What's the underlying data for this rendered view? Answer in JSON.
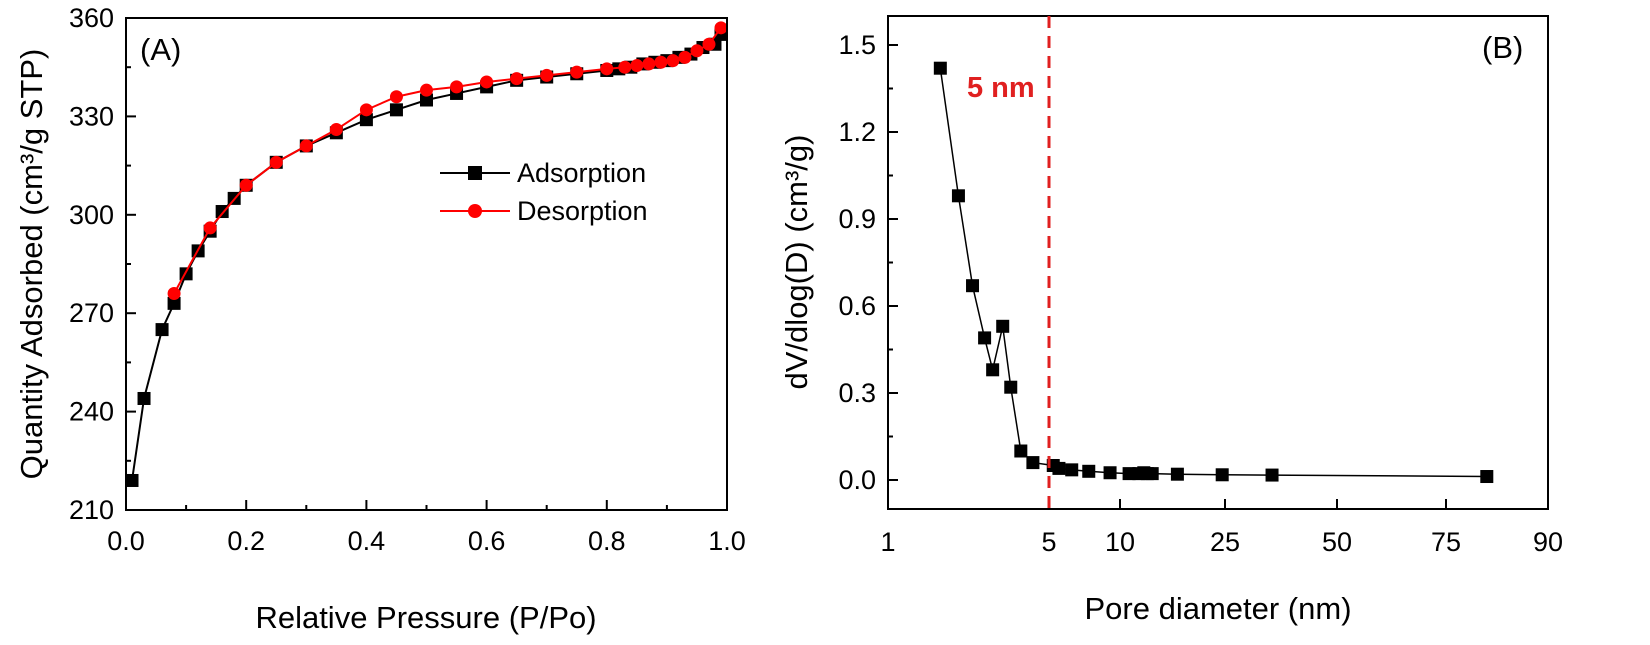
{
  "chart_data": [
    {
      "type": "line",
      "panel_label": "(A)",
      "xlabel": "Relative Pressure (P/Po)",
      "ylabel": "Quantity Adsorbed (cm³/g STP)",
      "xlim": [
        0.0,
        1.0
      ],
      "ylim": [
        210,
        360
      ],
      "xticks": [
        0.0,
        0.2,
        0.4,
        0.6,
        0.8,
        1.0
      ],
      "xtick_labels": [
        "0.0",
        "0.2",
        "0.4",
        "0.6",
        "0.8",
        "1.0"
      ],
      "yticks": [
        210,
        240,
        270,
        300,
        330,
        360
      ],
      "ytick_labels": [
        "210",
        "240",
        "270",
        "300",
        "330",
        "360"
      ],
      "legend_position": "center-right",
      "series": [
        {
          "name": "Adsorption",
          "color": "#000000",
          "marker": "square",
          "x": [
            0.01,
            0.03,
            0.06,
            0.08,
            0.1,
            0.12,
            0.14,
            0.16,
            0.18,
            0.2,
            0.25,
            0.3,
            0.35,
            0.4,
            0.45,
            0.5,
            0.55,
            0.6,
            0.65,
            0.7,
            0.75,
            0.8,
            0.82,
            0.84,
            0.86,
            0.88,
            0.9,
            0.92,
            0.94,
            0.96,
            0.98,
            0.99
          ],
          "y": [
            219,
            244,
            265,
            273,
            282,
            289,
            295,
            301,
            305,
            309,
            316,
            321,
            325,
            329,
            332,
            335,
            337,
            339,
            341,
            342,
            343,
            344,
            344.5,
            345,
            346,
            346.5,
            347,
            348,
            349,
            351,
            352,
            355
          ]
        },
        {
          "name": "Desorption",
          "color": "#ff0000",
          "marker": "circle",
          "x": [
            0.99,
            0.97,
            0.95,
            0.93,
            0.91,
            0.89,
            0.87,
            0.85,
            0.83,
            0.8,
            0.75,
            0.7,
            0.65,
            0.6,
            0.55,
            0.5,
            0.45,
            0.4,
            0.35,
            0.3,
            0.25,
            0.2,
            0.14,
            0.08
          ],
          "y": [
            357,
            352,
            350,
            348,
            347,
            346.5,
            346,
            345.5,
            345,
            344.5,
            343.5,
            342.5,
            341.5,
            340.5,
            339,
            338,
            336,
            332,
            326,
            321,
            316,
            309,
            296,
            276
          ]
        }
      ]
    },
    {
      "type": "line",
      "panel_label": "(B)",
      "xlabel": "Pore diameter (nm)",
      "ylabel": "dV/dlog(D) (cm³/g)",
      "x_axis_scale": "nonlinear (tick positions as printed)",
      "xticks": [
        1,
        5,
        10,
        25,
        50,
        75,
        90
      ],
      "xtick_labels": [
        "1",
        "5",
        "10",
        "25",
        "50",
        "75",
        "90"
      ],
      "ylim": [
        -0.1,
        1.6
      ],
      "yticks": [
        0.0,
        0.3,
        0.6,
        0.9,
        1.2,
        1.5
      ],
      "ytick_labels": [
        "0.0",
        "0.3",
        "0.6",
        "0.9",
        "1.2",
        "1.5"
      ],
      "annotation": {
        "text": "5 nm",
        "x": 5,
        "color": "#ff0000",
        "style": "dashed vertical line"
      },
      "series": [
        {
          "color": "#000000",
          "marker": "square",
          "x": [
            2.3,
            2.75,
            3.1,
            3.4,
            3.6,
            3.85,
            4.05,
            4.3,
            4.6,
            5.3,
            5.7,
            6.6,
            7.8,
            9.3,
            11.3,
            12.7,
            13.4,
            13.9,
            14.6,
            18.2,
            24.6,
            35.5,
            81
          ],
          "y": [
            1.42,
            0.98,
            0.67,
            0.49,
            0.38,
            0.53,
            0.32,
            0.1,
            0.06,
            0.05,
            0.04,
            0.035,
            0.03,
            0.025,
            0.022,
            0.022,
            0.025,
            0.022,
            0.022,
            0.02,
            0.018,
            0.017,
            0.012
          ]
        }
      ]
    }
  ]
}
